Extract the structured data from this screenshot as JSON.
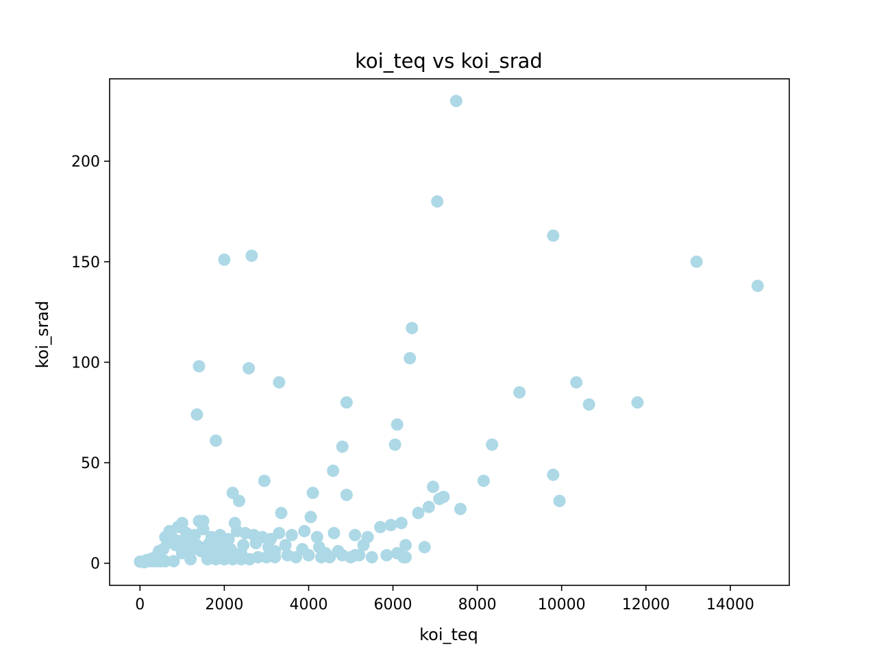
{
  "chart_data": {
    "type": "scatter",
    "title": "koi_teq vs koi_srad",
    "xlabel": "koi_teq",
    "ylabel": "koi_srad",
    "xlim": [
      -720,
      15400
    ],
    "ylim": [
      -11,
      241
    ],
    "xticks": [
      0,
      2000,
      4000,
      6000,
      8000,
      10000,
      12000,
      14000
    ],
    "xtick_labels": [
      "0",
      "2000",
      "4000",
      "6000",
      "8000",
      "10000",
      "12000",
      "14000"
    ],
    "yticks": [
      0,
      50,
      100,
      150,
      200
    ],
    "ytick_labels": [
      "0",
      "50",
      "100",
      "150",
      "200"
    ],
    "grid": false,
    "legend": false,
    "point_color": "#add8e6",
    "series": [
      {
        "x": [
          7500,
          7050,
          9800,
          2650,
          2000,
          13200,
          14650,
          6450,
          6400,
          1400,
          2580,
          3300,
          10350,
          9000,
          10650,
          11800,
          4900,
          1350,
          6100,
          6050,
          1800,
          4800,
          8350,
          4580,
          2950,
          8150,
          9800,
          6950,
          4100,
          4900,
          7200,
          2200,
          2350,
          7100,
          9950,
          6850,
          7600,
          6600,
          3350,
          4050,
          6200,
          5950,
          5700,
          1500,
          1400,
          1000,
          2250,
          6300,
          6750,
          6250,
          5850,
          5500,
          5200,
          5000,
          4800,
          4500,
          4300,
          4000,
          3700,
          3500,
          3200,
          3000,
          2800,
          2600,
          2400,
          2200,
          2000,
          1800,
          1600,
          1200,
          800,
          600,
          500,
          400,
          300,
          200,
          100,
          0,
          700,
          900,
          1100,
          1300,
          1500,
          1700,
          1900,
          2100,
          2300,
          2500,
          2700,
          2900,
          3100,
          3300,
          3600,
          3900,
          4200,
          4600,
          5100,
          5400,
          650,
          750,
          850,
          950,
          1050,
          1150,
          1250,
          1350,
          1450,
          1550,
          1650,
          1750,
          1850,
          1950,
          2050,
          2150,
          2450,
          2750,
          3050,
          3450,
          3850,
          4250,
          4700,
          5300,
          450,
          550,
          350,
          250,
          150,
          1000,
          1600,
          2400,
          3200,
          4400,
          5100,
          6100,
          6300,
          800,
          1200,
          600
        ],
        "y": [
          230,
          180,
          163,
          153,
          151,
          150,
          138,
          117,
          102,
          98,
          97,
          90,
          90,
          85,
          79,
          80,
          80,
          74,
          69,
          59,
          61,
          58,
          59,
          46,
          41,
          41,
          44,
          38,
          35,
          34,
          33,
          35,
          31,
          32,
          31,
          28,
          27,
          25,
          25,
          23,
          20,
          19,
          18,
          21,
          21,
          20,
          20,
          9,
          8,
          3,
          4,
          3,
          4,
          3,
          4,
          3,
          3,
          4,
          3,
          4,
          3,
          3,
          3,
          2,
          2,
          2,
          2,
          2,
          2,
          2,
          1,
          1,
          1,
          1,
          1,
          1,
          0.5,
          0.8,
          16,
          18,
          15,
          14,
          17,
          13,
          14,
          12,
          16,
          15,
          14,
          13,
          12,
          15,
          14,
          16,
          13,
          15,
          14,
          13,
          10,
          12,
          9,
          11,
          8,
          10,
          7,
          9,
          6,
          8,
          10,
          7,
          9,
          6,
          8,
          7,
          9,
          10,
          8,
          9,
          7,
          8,
          6,
          9,
          6,
          7,
          3,
          2,
          1.5,
          5,
          6,
          5,
          6,
          5,
          4,
          5,
          3,
          12,
          11,
          13
        ]
      }
    ]
  }
}
